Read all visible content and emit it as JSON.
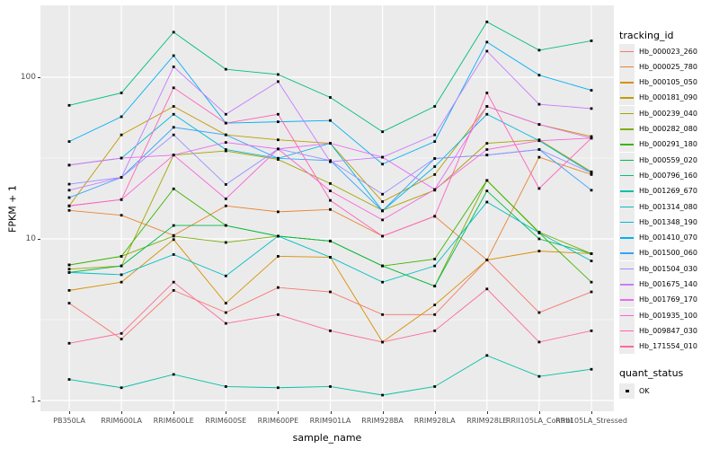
{
  "colors": {
    "panel_bg": "#EBEBEB",
    "grid": "#FFFFFF",
    "axis_text": "#4D4D4D",
    "marker": "#000000",
    "legend_key_bg": "#ECECEC"
  },
  "chart_data": {
    "type": "line",
    "title": "",
    "xlabel": "sample_name",
    "ylabel": "FPKM + 1",
    "y_scale": "log10",
    "ylim": [
      1,
      280
    ],
    "y_ticks": [
      1,
      10,
      100
    ],
    "y_minor_ticks": [
      3.162,
      31.62
    ],
    "grid": true,
    "marker": "black-square",
    "legend_position": "right",
    "legend_titles": {
      "series": "tracking_id",
      "quant": "quant_status"
    },
    "quant_status_items": [
      {
        "label": "OK"
      }
    ],
    "categories": [
      "PB350LA",
      "RRIM600LA",
      "RRIM600LE",
      "RRIM600SE",
      "RRIM600PE",
      "RRIM901LA",
      "RRIM928BA",
      "RRIM928LA",
      "RRIM928LE",
      "RRII105LA_Control",
      "RRII105LA_Stressed"
    ],
    "series": [
      {
        "name": "Hb_000023_260",
        "color": "#F8766D",
        "values": [
          4.0,
          2.4,
          4.8,
          3.5,
          5.0,
          4.7,
          3.4,
          3.4,
          7.4,
          3.5,
          4.7
        ]
      },
      {
        "name": "Hb_000025_780",
        "color": "#EA8331",
        "values": [
          15,
          14,
          10.5,
          16,
          14.7,
          15.2,
          10.4,
          13.8,
          7.4,
          32,
          25
        ]
      },
      {
        "name": "Hb_000105_050",
        "color": "#D89000",
        "values": [
          4.8,
          5.4,
          9.9,
          4.0,
          7.8,
          7.7,
          2.3,
          3.9,
          7.4,
          8.4,
          8.1
        ]
      },
      {
        "name": "Hb_000181_090",
        "color": "#C09B00",
        "values": [
          16,
          44,
          66,
          44,
          41,
          39,
          17,
          25,
          66,
          51,
          43
        ]
      },
      {
        "name": "Hb_000239_040",
        "color": "#A3A500",
        "values": [
          6.5,
          6.8,
          33,
          35,
          31,
          22,
          15,
          20,
          39,
          41,
          26
        ]
      },
      {
        "name": "Hb_000282_080",
        "color": "#7CAE00",
        "values": [
          6.9,
          7.8,
          10.4,
          9.5,
          10.4,
          9.7,
          6.8,
          5.1,
          23,
          11,
          8.1
        ]
      },
      {
        "name": "Hb_000291_180",
        "color": "#39B600",
        "values": [
          6.9,
          7.8,
          20.4,
          12.1,
          10.4,
          9.7,
          6.8,
          7.5,
          23,
          10.9,
          5.4
        ]
      },
      {
        "name": "Hb_000559_020",
        "color": "#00BB4E",
        "values": [
          6.2,
          6.8,
          12.1,
          12.1,
          10.4,
          9.7,
          6.8,
          5.1,
          19.8,
          10,
          8.1
        ]
      },
      {
        "name": "Hb_000796_160",
        "color": "#00BF7D",
        "values": [
          67,
          80,
          190,
          112,
          104,
          75,
          46,
          66,
          220,
          147,
          168
        ]
      },
      {
        "name": "Hb_001269_670",
        "color": "#00C1A3",
        "values": [
          1.35,
          1.2,
          1.45,
          1.22,
          1.2,
          1.22,
          1.08,
          1.22,
          1.9,
          1.41,
          1.56
        ]
      },
      {
        "name": "Hb_001314_080",
        "color": "#00BFC4",
        "values": [
          6.2,
          6.0,
          8.0,
          5.9,
          10.4,
          7.7,
          5.4,
          6.8,
          16.9,
          10.9,
          7.3
        ]
      },
      {
        "name": "Hb_001348_190",
        "color": "#00BADE",
        "values": [
          28.6,
          31.6,
          59,
          35.7,
          31.5,
          39,
          14.9,
          28,
          59,
          40.5,
          25.6
        ]
      },
      {
        "name": "Hb_001410_070",
        "color": "#00B0F6",
        "values": [
          40,
          57,
          136,
          52,
          53,
          54,
          29,
          40,
          165,
          103,
          83
        ]
      },
      {
        "name": "Hb_001500_060",
        "color": "#35A2FF",
        "values": [
          18,
          24,
          49,
          44,
          31.5,
          30.5,
          14.9,
          31.4,
          33,
          35.7,
          20
        ]
      },
      {
        "name": "Hb_001504_030",
        "color": "#9590FF",
        "values": [
          21.8,
          24,
          44,
          21.7,
          36,
          30.5,
          18.9,
          31.4,
          33,
          35.7,
          25.6
        ]
      },
      {
        "name": "Hb_001675_140",
        "color": "#C77CFF",
        "values": [
          20,
          24,
          116,
          59,
          94,
          30,
          32,
          44,
          145,
          68,
          64
        ]
      },
      {
        "name": "Hb_001769_170",
        "color": "#E76BF3",
        "values": [
          28.6,
          31.6,
          33,
          39.5,
          36,
          39,
          32,
          20.2,
          66,
          51,
          42
        ]
      },
      {
        "name": "Hb_001935_100",
        "color": "#FA62DB",
        "values": [
          16,
          17.5,
          33,
          17.7,
          36,
          19.8,
          13.1,
          20.2,
          35.7,
          40.5,
          42
        ]
      },
      {
        "name": "Hb_009847_030",
        "color": "#FF62BC",
        "values": [
          16,
          17.5,
          86,
          52,
          59,
          17.3,
          10.4,
          13.8,
          80,
          20.5,
          42
        ]
      },
      {
        "name": "Hb_171554_010",
        "color": "#FF6A98",
        "values": [
          2.26,
          2.6,
          5.4,
          3.0,
          3.4,
          2.7,
          2.3,
          2.7,
          4.9,
          2.3,
          2.7
        ]
      }
    ]
  }
}
